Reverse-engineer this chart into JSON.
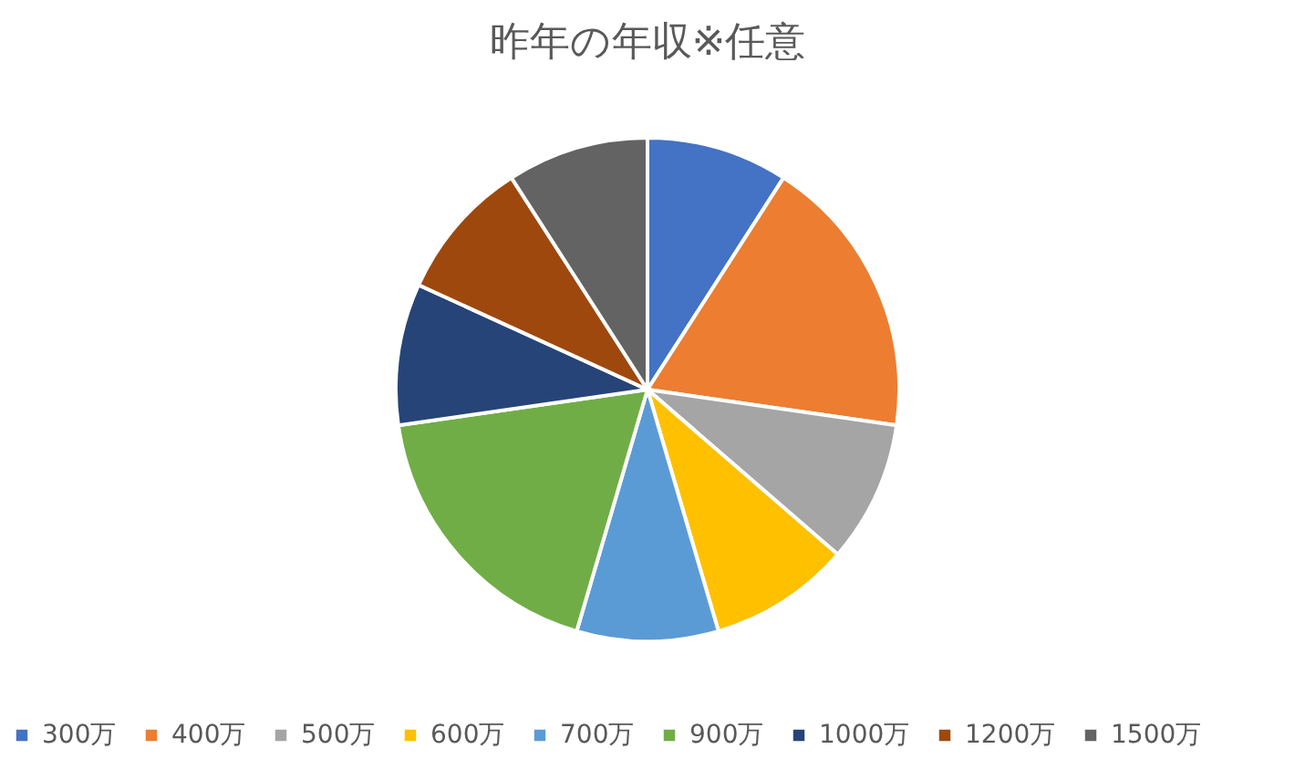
{
  "chart_data": {
    "type": "pie",
    "title": "昨年の年収※任意",
    "categories": [
      "300万",
      "400万",
      "500万",
      "600万",
      "700万",
      "900万",
      "1000万",
      "1200万",
      "1500万"
    ],
    "values": [
      9.09,
      18.18,
      9.09,
      9.09,
      9.09,
      18.19,
      9.09,
      9.09,
      9.09
    ],
    "colors": [
      "#4472c4",
      "#ed7d31",
      "#a5a5a5",
      "#ffc000",
      "#5b9bd5",
      "#70ad47",
      "#264478",
      "#9e480e",
      "#636363"
    ],
    "legend": "bottom"
  }
}
